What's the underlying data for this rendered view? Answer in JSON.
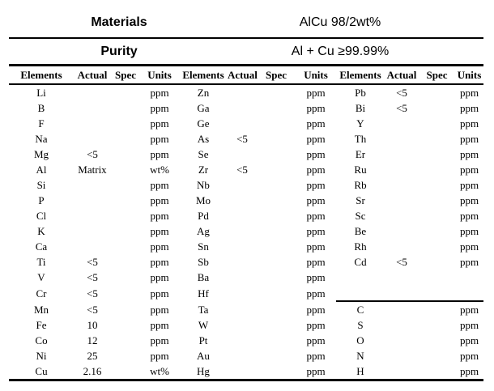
{
  "page": {
    "background": "#ffffff",
    "text_color": "#000000",
    "rule_color": "#000000"
  },
  "info": {
    "materials_label": "Materials",
    "materials_value": "AlCu 98/2wt%",
    "purity_label": "Purity",
    "purity_value": "Al + Cu ≥99.99%"
  },
  "table": {
    "column_headers": [
      "Elements",
      "Actual",
      "Spec",
      "Units",
      "Elements",
      "Actual",
      "Spec",
      "Units",
      "Elements",
      "Actual",
      "Spec",
      "Units"
    ],
    "group3_divider_before_row_index": 14,
    "group3_divider_start_col": 8,
    "rows": [
      [
        "Li",
        "",
        "",
        "ppm",
        "Zn",
        "",
        "",
        "ppm",
        "Pb",
        "<5",
        "",
        "ppm"
      ],
      [
        "B",
        "",
        "",
        "ppm",
        "Ga",
        "",
        "",
        "ppm",
        "Bi",
        "<5",
        "",
        "ppm"
      ],
      [
        "F",
        "",
        "",
        "ppm",
        "Ge",
        "",
        "",
        "ppm",
        "Y",
        "",
        "",
        "ppm"
      ],
      [
        "Na",
        "",
        "",
        "ppm",
        "As",
        "<5",
        "",
        "ppm",
        "Th",
        "",
        "",
        "ppm"
      ],
      [
        "Mg",
        "<5",
        "",
        "ppm",
        "Se",
        "",
        "",
        "ppm",
        "Er",
        "",
        "",
        "ppm"
      ],
      [
        "Al",
        "Matrix",
        "",
        "wt%",
        "Zr",
        "<5",
        "",
        "ppm",
        "Ru",
        "",
        "",
        "ppm"
      ],
      [
        "Si",
        "",
        "",
        "ppm",
        "Nb",
        "",
        "",
        "ppm",
        "Rb",
        "",
        "",
        "ppm"
      ],
      [
        "P",
        "",
        "",
        "ppm",
        "Mo",
        "",
        "",
        "ppm",
        "Sr",
        "",
        "",
        "ppm"
      ],
      [
        "Cl",
        "",
        "",
        "ppm",
        "Pd",
        "",
        "",
        "ppm",
        "Sc",
        "",
        "",
        "ppm"
      ],
      [
        "K",
        "",
        "",
        "ppm",
        "Ag",
        "",
        "",
        "ppm",
        "Be",
        "",
        "",
        "ppm"
      ],
      [
        "Ca",
        "",
        "",
        "ppm",
        "Sn",
        "",
        "",
        "ppm",
        "Rh",
        "",
        "",
        "ppm"
      ],
      [
        "Ti",
        "<5",
        "",
        "ppm",
        "Sb",
        "",
        "",
        "ppm",
        "Cd",
        "<5",
        "",
        "ppm"
      ],
      [
        "V",
        "<5",
        "",
        "ppm",
        "Ba",
        "",
        "",
        "ppm",
        "",
        "",
        "",
        ""
      ],
      [
        "Cr",
        "<5",
        "",
        "ppm",
        "Hf",
        "",
        "",
        "ppm",
        "",
        "",
        "",
        ""
      ],
      [
        "Mn",
        "<5",
        "",
        "ppm",
        "Ta",
        "",
        "",
        "ppm",
        "C",
        "",
        "",
        "ppm"
      ],
      [
        "Fe",
        "10",
        "",
        "ppm",
        "W",
        "",
        "",
        "ppm",
        "S",
        "",
        "",
        "ppm"
      ],
      [
        "Co",
        "12",
        "",
        "ppm",
        "Pt",
        "",
        "",
        "ppm",
        "O",
        "",
        "",
        "ppm"
      ],
      [
        "Ni",
        "25",
        "",
        "ppm",
        "Au",
        "",
        "",
        "ppm",
        "N",
        "",
        "",
        "ppm"
      ],
      [
        "Cu",
        "2.16",
        "",
        "wt%",
        "Hg",
        "",
        "",
        "ppm",
        "H",
        "",
        "",
        "ppm"
      ]
    ]
  }
}
